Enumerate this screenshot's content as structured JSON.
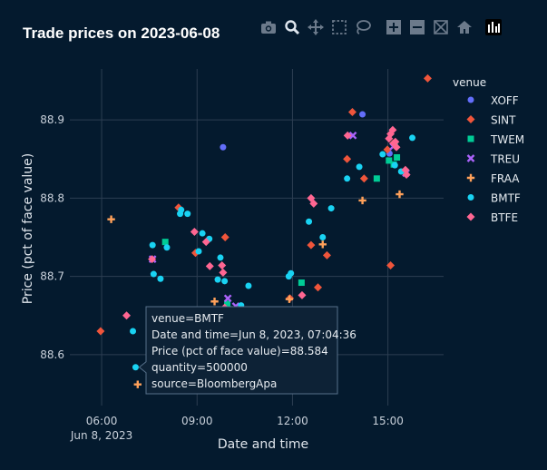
{
  "title": "Trade prices on 2023-06-08",
  "toolbar": [
    {
      "name": "camera-icon"
    },
    {
      "name": "zoom-icon"
    },
    {
      "name": "pan-icon"
    },
    {
      "name": "box-select-icon"
    },
    {
      "name": "lasso-select-icon"
    },
    {
      "name": "zoom-in-icon"
    },
    {
      "name": "zoom-out-icon"
    },
    {
      "name": "autoscale-icon"
    },
    {
      "name": "reset-axes-home-icon"
    },
    {
      "name": "plotly-logo-icon"
    }
  ],
  "chart_data": {
    "type": "scatter",
    "title": "Trade prices on 2023-06-08",
    "xlabel": "Date and time",
    "ylabel": "Price (pct of face value)",
    "x_ticks": [
      "06:00\nJun 8, 2023",
      "09:00",
      "12:00",
      "15:00"
    ],
    "y_ticks": [
      "88.6",
      "88.7",
      "88.8",
      "88.9"
    ],
    "xlim": [
      "05:00",
      "16:45"
    ],
    "ylim": [
      88.535,
      88.965
    ],
    "grid": true,
    "legend_title": "venue",
    "legend_position": "right",
    "series": [
      {
        "name": "XOFF",
        "color": "#636efa",
        "symbol": "circle",
        "points": [
          [
            "09:49",
            88.865
          ],
          [
            "11:14",
            88.633
          ],
          [
            "14:12",
            88.907
          ],
          [
            "15:03",
            88.857
          ]
        ]
      },
      {
        "name": "SINT",
        "color": "#ef553b",
        "symbol": "diamond",
        "points": [
          [
            "05:58",
            88.63
          ],
          [
            "08:25",
            88.788
          ],
          [
            "08:57",
            88.73
          ],
          [
            "09:53",
            88.75
          ],
          [
            "11:55",
            88.672
          ],
          [
            "12:35",
            88.74
          ],
          [
            "12:48",
            88.686
          ],
          [
            "13:05",
            88.727
          ],
          [
            "13:43",
            88.85
          ],
          [
            "13:53",
            88.91
          ],
          [
            "14:15",
            88.825
          ],
          [
            "14:59",
            88.862
          ],
          [
            "15:05",
            88.714
          ],
          [
            "15:10",
            88.87
          ],
          [
            "16:15",
            88.953
          ]
        ]
      },
      {
        "name": "TWEM",
        "color": "#00cc96",
        "symbol": "square",
        "points": [
          [
            "08:00",
            88.744
          ],
          [
            "09:57",
            88.665
          ],
          [
            "12:17",
            88.692
          ],
          [
            "14:39",
            88.825
          ],
          [
            "15:02",
            88.848
          ],
          [
            "15:11",
            88.843
          ],
          [
            "15:13",
            88.869
          ],
          [
            "15:17",
            88.852
          ]
        ]
      },
      {
        "name": "TREU",
        "color": "#ab63fa",
        "symbol": "x",
        "points": [
          [
            "07:36",
            88.722
          ],
          [
            "09:58",
            88.672
          ],
          [
            "10:13",
            88.662
          ],
          [
            "13:54",
            88.88
          ],
          [
            "15:10",
            88.866
          ],
          [
            "15:34",
            88.832
          ]
        ]
      },
      {
        "name": "FRAA",
        "color": "#ffa15a",
        "symbol": "cross",
        "points": [
          [
            "06:18",
            88.773
          ],
          [
            "07:08",
            88.562
          ],
          [
            "07:58",
            88.656
          ],
          [
            "09:33",
            88.668
          ],
          [
            "09:57",
            88.647
          ],
          [
            "11:54",
            88.671
          ],
          [
            "12:57",
            88.741
          ],
          [
            "14:12",
            88.797
          ],
          [
            "15:22",
            88.805
          ]
        ]
      },
      {
        "name": "BMTF",
        "color": "#19d3f3",
        "symbol": "circle",
        "points": [
          [
            "06:59",
            88.63
          ],
          [
            "07:04",
            88.584
          ],
          [
            "07:36",
            88.74
          ],
          [
            "07:38",
            88.703
          ],
          [
            "07:51",
            88.697
          ],
          [
            "08:03",
            88.737
          ],
          [
            "08:28",
            88.78
          ],
          [
            "08:30",
            88.785
          ],
          [
            "08:42",
            88.78
          ],
          [
            "09:03",
            88.732
          ],
          [
            "09:10",
            88.755
          ],
          [
            "09:23",
            88.748
          ],
          [
            "09:39",
            88.696
          ],
          [
            "09:44",
            88.724
          ],
          [
            "09:52",
            88.694
          ],
          [
            "10:04",
            88.658
          ],
          [
            "10:23",
            88.663
          ],
          [
            "10:37",
            88.688
          ],
          [
            "11:14",
            88.65
          ],
          [
            "11:28",
            88.655
          ],
          [
            "11:53",
            88.7
          ],
          [
            "11:57",
            88.704
          ],
          [
            "12:31",
            88.77
          ],
          [
            "12:57",
            88.75
          ],
          [
            "13:13",
            88.787
          ],
          [
            "13:43",
            88.825
          ],
          [
            "14:06",
            88.84
          ],
          [
            "14:50",
            88.856
          ],
          [
            "15:13",
            88.842
          ],
          [
            "15:25",
            88.834
          ],
          [
            "15:46",
            88.877
          ]
        ]
      },
      {
        "name": "BTFE",
        "color": "#ff6692",
        "symbol": "diamond",
        "points": [
          [
            "06:47",
            88.65
          ],
          [
            "07:35",
            88.722
          ],
          [
            "08:55",
            88.757
          ],
          [
            "09:17",
            88.744
          ],
          [
            "09:24",
            88.713
          ],
          [
            "09:47",
            88.714
          ],
          [
            "09:49",
            88.705
          ],
          [
            "09:52",
            88.66
          ],
          [
            "12:18",
            88.676
          ],
          [
            "12:35",
            88.8
          ],
          [
            "12:40",
            88.793
          ],
          [
            "13:44",
            88.88
          ],
          [
            "15:02",
            88.876
          ],
          [
            "15:05",
            88.882
          ],
          [
            "15:09",
            88.887
          ],
          [
            "15:11",
            88.87
          ],
          [
            "15:14",
            88.872
          ],
          [
            "15:16",
            88.865
          ],
          [
            "15:33",
            88.836
          ],
          [
            "15:35",
            88.83
          ]
        ]
      }
    ]
  },
  "tooltip": {
    "lines": [
      "venue=BMTF",
      "Date and time=Jun 8, 2023, 07:04:36",
      "Price (pct of face value)=88.584",
      "quantity=500000",
      "source=BloombergApa"
    ],
    "series": "BMTF",
    "x": "07:04",
    "y": 88.584
  }
}
